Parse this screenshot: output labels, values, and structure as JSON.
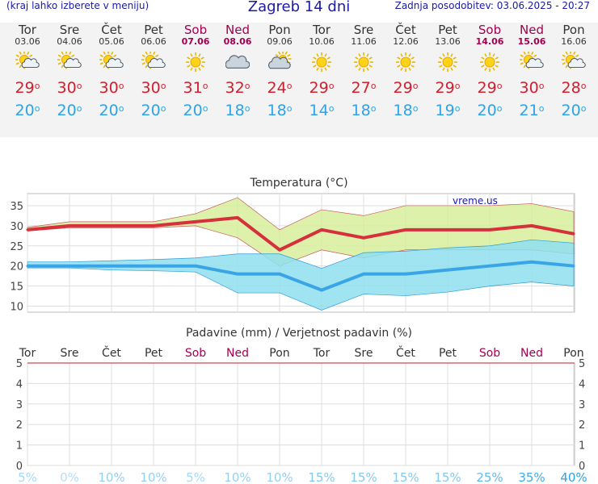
{
  "header": {
    "left_note": "(kraj lahko izberete v meniju)",
    "title": "Zagreb 14 dni",
    "updated": "Zadnja posodobitev: 03.06.2025 - 20:27"
  },
  "colors": {
    "max": "#d6303c",
    "min": "#3aa5e6",
    "weekend": "#a3004f",
    "max_band": "#d7ef9c",
    "min_band": "#8fdff0"
  },
  "days": [
    {
      "name": "Tor",
      "date": "03.06",
      "weekend": false,
      "icon": "partly-cloudy-sun-icon",
      "max": "29",
      "min": "20"
    },
    {
      "name": "Sre",
      "date": "04.06",
      "weekend": false,
      "icon": "partly-cloudy-sun-icon",
      "max": "30",
      "min": "20"
    },
    {
      "name": "Čet",
      "date": "05.06",
      "weekend": false,
      "icon": "partly-cloudy-sun-icon",
      "max": "30",
      "min": "20"
    },
    {
      "name": "Pet",
      "date": "06.06",
      "weekend": false,
      "icon": "partly-cloudy-sun-icon",
      "max": "30",
      "min": "20"
    },
    {
      "name": "Sob",
      "date": "07.06",
      "weekend": true,
      "icon": "sun-icon",
      "max": "31",
      "min": "20"
    },
    {
      "name": "Ned",
      "date": "08.06",
      "weekend": true,
      "icon": "cloudy-icon",
      "max": "32",
      "min": "18"
    },
    {
      "name": "Pon",
      "date": "09.06",
      "weekend": false,
      "icon": "cloudy-sun-icon",
      "max": "24",
      "min": "18"
    },
    {
      "name": "Tor",
      "date": "10.06",
      "weekend": false,
      "icon": "sun-icon",
      "max": "29",
      "min": "14"
    },
    {
      "name": "Sre",
      "date": "11.06",
      "weekend": false,
      "icon": "sun-icon",
      "max": "27",
      "min": "18"
    },
    {
      "name": "Čet",
      "date": "12.06",
      "weekend": false,
      "icon": "sun-icon",
      "max": "29",
      "min": "18"
    },
    {
      "name": "Pet",
      "date": "13.06",
      "weekend": false,
      "icon": "sun-icon",
      "max": "29",
      "min": "19"
    },
    {
      "name": "Sob",
      "date": "14.06",
      "weekend": true,
      "icon": "sun-icon",
      "max": "29",
      "min": "20"
    },
    {
      "name": "Ned",
      "date": "15.06",
      "weekend": true,
      "icon": "partly-cloudy-sun-icon",
      "max": "30",
      "min": "21"
    },
    {
      "name": "Pon",
      "date": "16.06",
      "weekend": false,
      "icon": "partly-cloudy-sun-icon",
      "max": "28",
      "min": "20"
    }
  ],
  "chart_data": [
    {
      "type": "line",
      "title": "Temperatura (°C)",
      "watermark": "vreme.us",
      "x": [
        "03.06",
        "04.06",
        "05.06",
        "06.06",
        "07.06",
        "08.06",
        "09.06",
        "10.06",
        "11.06",
        "12.06",
        "13.06",
        "14.06",
        "15.06",
        "16.06"
      ],
      "series": [
        {
          "role": "max",
          "values": [
            29,
            30,
            30,
            30,
            31,
            32,
            24,
            29,
            27,
            29,
            29,
            29,
            30,
            28
          ],
          "band_high": [
            29.6,
            31,
            31,
            31,
            33,
            37,
            29,
            34,
            32.5,
            35,
            35,
            35,
            35.5,
            33.5
          ],
          "band_low": [
            28.7,
            29.5,
            29.5,
            29.5,
            30,
            27,
            20,
            24,
            22,
            24,
            24,
            24,
            24,
            23
          ]
        },
        {
          "role": "min",
          "values": [
            20,
            20,
            20,
            20,
            20,
            18,
            18,
            14,
            18,
            18,
            19,
            20,
            21,
            20
          ],
          "band_high": [
            21,
            21,
            21.3,
            21.6,
            22,
            23,
            23,
            19.4,
            23.3,
            23.7,
            24.5,
            25,
            26.5,
            25.7
          ],
          "band_low": [
            19.5,
            19.5,
            19,
            18.8,
            18.5,
            13.3,
            13.3,
            9,
            13,
            12.6,
            13.5,
            15,
            16,
            15
          ]
        }
      ],
      "ylim": [
        8.5,
        38
      ],
      "yticks": [
        10,
        15,
        20,
        25,
        30,
        35
      ],
      "grid": true
    },
    {
      "type": "bar",
      "title": "Padavine (mm) / Verjetnost padavin (%)",
      "categories": [
        "Tor",
        "Sre",
        "Čet",
        "Pet",
        "Sob",
        "Ned",
        "Pon",
        "Tor",
        "Sre",
        "Čet",
        "Pet",
        "Sob",
        "Ned",
        "Pon"
      ],
      "weekend": [
        false,
        false,
        false,
        false,
        true,
        true,
        false,
        false,
        false,
        false,
        false,
        true,
        true,
        false
      ],
      "values": [
        0,
        0,
        0,
        0,
        0,
        0,
        0,
        0,
        0,
        0,
        0,
        0,
        0,
        0
      ],
      "probability": [
        "5%",
        "0%",
        "10%",
        "10%",
        "5%",
        "10%",
        "10%",
        "15%",
        "15%",
        "15%",
        "15%",
        "25%",
        "35%",
        "40%"
      ],
      "ylim": [
        0,
        5
      ],
      "yticks": [
        0,
        1,
        2,
        3,
        4,
        5
      ],
      "grid": true
    }
  ]
}
